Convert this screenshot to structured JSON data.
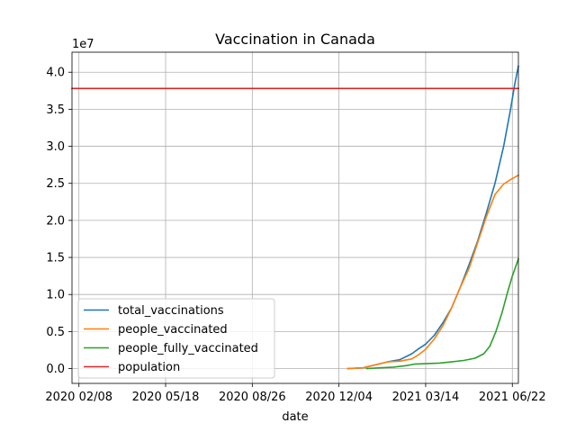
{
  "chart_data": {
    "type": "line",
    "title": "Vaccination in Canada",
    "xlabel": "date",
    "ylabel": "",
    "y_offset_label": "1e7",
    "ylim": [
      -0.2,
      4.27
    ],
    "y_scale_multiplier": 10000000,
    "xlim": [
      "2020-01-31",
      "2021-06-29"
    ],
    "grid": true,
    "legend_position": "lower-left",
    "x_ticks": [
      {
        "date": "2020-02-08",
        "label": "2020 02/08"
      },
      {
        "date": "2020-05-18",
        "label": "2020 05/18"
      },
      {
        "date": "2020-08-26",
        "label": "2020 08/26"
      },
      {
        "date": "2020-12-04",
        "label": "2020 12/04"
      },
      {
        "date": "2021-03-14",
        "label": "2021 03/14"
      },
      {
        "date": "2021-06-22",
        "label": "2021 06/22"
      }
    ],
    "y_ticks": [
      {
        "value": 0.0,
        "label": "0.0"
      },
      {
        "value": 0.5,
        "label": "0.5"
      },
      {
        "value": 1.0,
        "label": "1.0"
      },
      {
        "value": 1.5,
        "label": "1.5"
      },
      {
        "value": 2.0,
        "label": "2.0"
      },
      {
        "value": 2.5,
        "label": "2.5"
      },
      {
        "value": 3.0,
        "label": "3.0"
      },
      {
        "value": 3.5,
        "label": "3.5"
      },
      {
        "value": 4.0,
        "label": "4.0"
      }
    ],
    "series": [
      {
        "name": "total_vaccinations",
        "color": "#1f77b4",
        "points": [
          [
            "2020-12-14",
            0.0
          ],
          [
            "2021-01-01",
            0.01
          ],
          [
            "2021-01-15",
            0.05
          ],
          [
            "2021-01-29",
            0.09
          ],
          [
            "2021-02-12",
            0.12
          ],
          [
            "2021-02-26",
            0.2
          ],
          [
            "2021-03-05",
            0.26
          ],
          [
            "2021-03-14",
            0.33
          ],
          [
            "2021-03-24",
            0.45
          ],
          [
            "2021-04-03",
            0.62
          ],
          [
            "2021-04-13",
            0.82
          ],
          [
            "2021-04-23",
            1.1
          ],
          [
            "2021-05-03",
            1.4
          ],
          [
            "2021-05-13",
            1.72
          ],
          [
            "2021-05-23",
            2.1
          ],
          [
            "2021-06-02",
            2.5
          ],
          [
            "2021-06-12",
            3.0
          ],
          [
            "2021-06-20",
            3.5
          ],
          [
            "2021-06-25",
            3.85
          ],
          [
            "2021-06-29",
            4.08
          ]
        ]
      },
      {
        "name": "people_vaccinated",
        "color": "#ff7f0e",
        "points": [
          [
            "2020-12-14",
            0.0
          ],
          [
            "2021-01-01",
            0.01
          ],
          [
            "2021-01-15",
            0.05
          ],
          [
            "2021-01-29",
            0.09
          ],
          [
            "2021-02-12",
            0.1
          ],
          [
            "2021-02-26",
            0.13
          ],
          [
            "2021-03-05",
            0.18
          ],
          [
            "2021-03-14",
            0.26
          ],
          [
            "2021-03-24",
            0.4
          ],
          [
            "2021-04-03",
            0.58
          ],
          [
            "2021-04-13",
            0.82
          ],
          [
            "2021-04-23",
            1.1
          ],
          [
            "2021-05-03",
            1.35
          ],
          [
            "2021-05-13",
            1.7
          ],
          [
            "2021-05-23",
            2.05
          ],
          [
            "2021-06-02",
            2.35
          ],
          [
            "2021-06-12",
            2.49
          ],
          [
            "2021-06-20",
            2.55
          ],
          [
            "2021-06-29",
            2.61
          ]
        ]
      },
      {
        "name": "people_fully_vaccinated",
        "color": "#2ca02c",
        "points": [
          [
            "2021-01-05",
            0.0
          ],
          [
            "2021-01-20",
            0.01
          ],
          [
            "2021-02-05",
            0.02
          ],
          [
            "2021-02-20",
            0.04
          ],
          [
            "2021-03-01",
            0.06
          ],
          [
            "2021-03-14",
            0.066
          ],
          [
            "2021-03-30",
            0.075
          ],
          [
            "2021-04-13",
            0.09
          ],
          [
            "2021-04-27",
            0.11
          ],
          [
            "2021-05-10",
            0.14
          ],
          [
            "2021-05-20",
            0.2
          ],
          [
            "2021-05-27",
            0.3
          ],
          [
            "2021-06-03",
            0.5
          ],
          [
            "2021-06-10",
            0.75
          ],
          [
            "2021-06-17",
            1.05
          ],
          [
            "2021-06-22",
            1.25
          ],
          [
            "2021-06-29",
            1.48
          ]
        ]
      },
      {
        "name": "population",
        "color": "#d62728",
        "points": [
          [
            "2020-01-31",
            3.78
          ],
          [
            "2021-06-29",
            3.78
          ]
        ]
      }
    ]
  }
}
